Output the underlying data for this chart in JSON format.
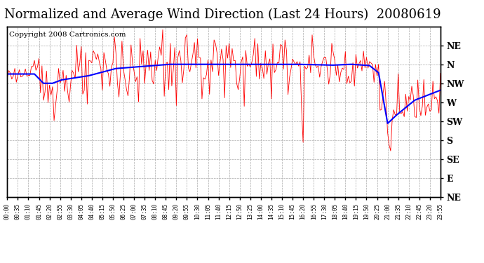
{
  "title": "Normalized and Average Wind Direction (Last 24 Hours)  20080619",
  "copyright": "Copyright 2008 Cartronics.com",
  "yaxis_labels_right": [
    "NE",
    "N",
    "NW",
    "W",
    "SW",
    "S",
    "SE",
    "E",
    "NE"
  ],
  "yaxis_label_positions": [
    360,
    315,
    270,
    225,
    180,
    135,
    90,
    45,
    0
  ],
  "ylim": [
    0,
    405
  ],
  "bg_color": "#ffffff",
  "plot_bg_color": "#ffffff",
  "grid_color": "#aaaaaa",
  "red_line_color": "#ff0000",
  "blue_line_color": "#0000ff",
  "title_fontsize": 13,
  "copyright_fontsize": 7.5,
  "xtick_every": 7
}
